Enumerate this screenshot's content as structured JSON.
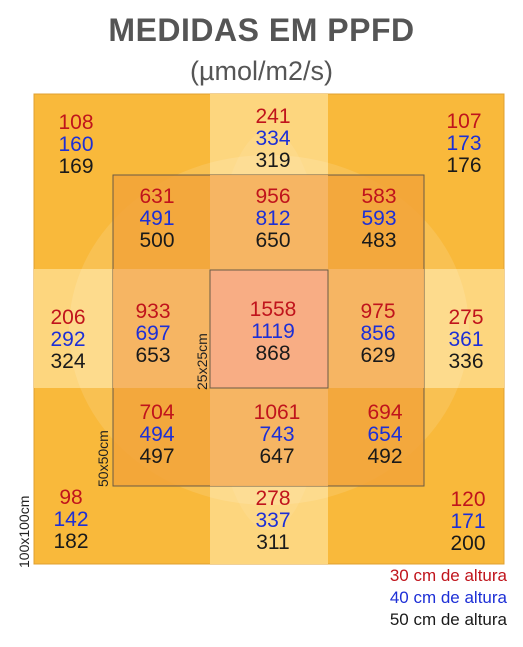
{
  "title": "MEDIDAS EM PPFD",
  "subtitle": "(µmol/m2/s)",
  "colors": {
    "h30": "#c0141c",
    "h40": "#1d2fd6",
    "h50": "#1a1a1a",
    "outer": "#f9b93b",
    "outer_band": "#fdd67e",
    "mid": "#f2a33a",
    "mid_band": "#f6b666",
    "center": "#f8ad84"
  },
  "chart_data": {
    "type": "heatmap",
    "title": "MEDIDAS EM PPFD",
    "subtitle": "(µmol/m2/s)",
    "areas": [
      "100x100cm",
      "50x50cm",
      "25x25cm"
    ],
    "series": [
      {
        "name": "30 cm de altura",
        "color": "#c0141c"
      },
      {
        "name": "40 cm de altura",
        "color": "#1d2fd6"
      },
      {
        "name": "50 cm de altura",
        "color": "#1a1a1a"
      }
    ],
    "cells": [
      {
        "pos": "outer-top-left",
        "values": [
          108,
          160,
          169
        ]
      },
      {
        "pos": "outer-top-center",
        "values": [
          241,
          334,
          319
        ]
      },
      {
        "pos": "outer-top-right",
        "values": [
          107,
          173,
          176
        ]
      },
      {
        "pos": "outer-middle-left",
        "values": [
          206,
          292,
          324
        ]
      },
      {
        "pos": "outer-middle-right",
        "values": [
          275,
          361,
          336
        ]
      },
      {
        "pos": "outer-bottom-left",
        "values": [
          98,
          142,
          182
        ]
      },
      {
        "pos": "outer-bottom-center",
        "values": [
          278,
          337,
          311
        ]
      },
      {
        "pos": "outer-bottom-right",
        "values": [
          120,
          171,
          200
        ]
      },
      {
        "pos": "mid-top-left",
        "values": [
          631,
          491,
          500
        ]
      },
      {
        "pos": "mid-top-center",
        "values": [
          956,
          812,
          650
        ]
      },
      {
        "pos": "mid-top-right",
        "values": [
          583,
          593,
          483
        ]
      },
      {
        "pos": "mid-middle-left",
        "values": [
          933,
          697,
          653
        ]
      },
      {
        "pos": "center",
        "values": [
          1558,
          1119,
          868
        ]
      },
      {
        "pos": "mid-middle-right",
        "values": [
          975,
          856,
          629
        ]
      },
      {
        "pos": "mid-bottom-left",
        "values": [
          704,
          494,
          497
        ]
      },
      {
        "pos": "mid-bottom-center",
        "values": [
          1061,
          743,
          647
        ]
      },
      {
        "pos": "mid-bottom-right",
        "values": [
          694,
          654,
          492
        ]
      }
    ]
  }
}
